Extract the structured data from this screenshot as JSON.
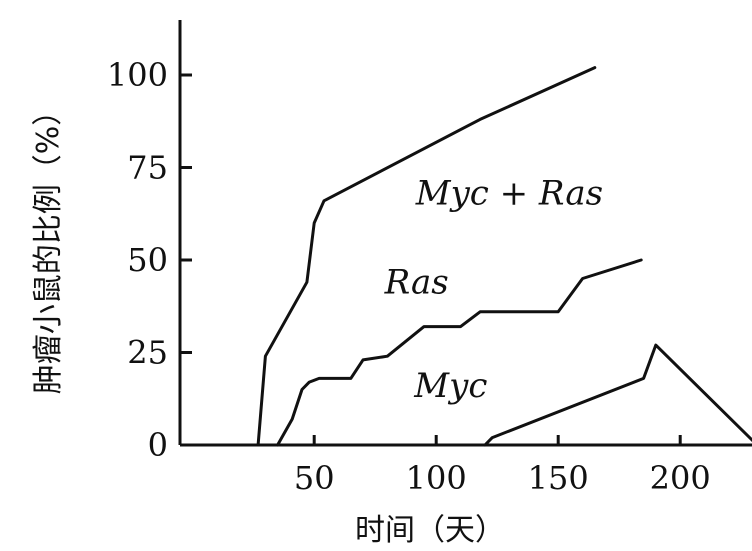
{
  "chart_data": {
    "type": "line",
    "xlabel": "时间（天）",
    "ylabel": "肿瘤小鼠的比例（%）",
    "xlim": [
      -5,
      230
    ],
    "ylim": [
      0,
      115
    ],
    "xticks": [
      50,
      100,
      150,
      200
    ],
    "yticks": [
      0,
      25,
      50,
      75,
      100
    ],
    "grid": false,
    "legend": "none",
    "series": [
      {
        "name": "Myc + Ras",
        "x": [
          0,
          27,
          30,
          47,
          50,
          54,
          118,
          165
        ],
        "y": [
          0,
          0,
          24,
          44,
          60,
          66,
          88,
          102
        ]
      },
      {
        "name": "Ras",
        "x": [
          35,
          41,
          45,
          48,
          52,
          65,
          70,
          80,
          95,
          110,
          118,
          150,
          160,
          184
        ],
        "y": [
          0,
          7,
          15,
          17,
          18,
          18,
          23,
          24,
          32,
          32,
          36,
          36,
          45,
          50
        ]
      },
      {
        "name": "Myc",
        "x": [
          120,
          123,
          185,
          190,
          230
        ],
        "y": [
          0,
          2,
          18,
          27,
          1
        ]
      }
    ]
  }
}
